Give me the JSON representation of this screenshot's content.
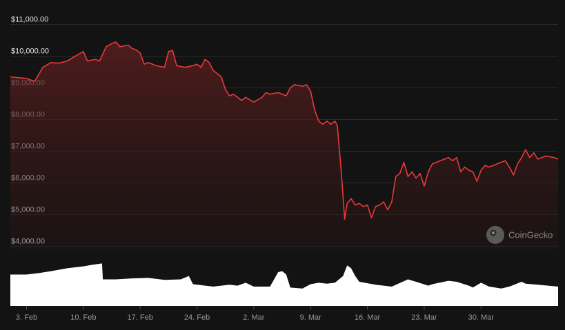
{
  "chart_data": {
    "type": "area",
    "title": "",
    "xlabel": "",
    "ylabel": "",
    "ylim": [
      3900,
      11100
    ],
    "y_ticks": [
      "$11,000.00",
      "$10,000.00",
      "$9,000.00",
      "$8,000.00",
      "$7,000.00",
      "$6,000.00",
      "$5,000.00",
      "$4,000.00"
    ],
    "y_tick_values": [
      11000,
      10000,
      9000,
      8000,
      7000,
      6000,
      5000,
      4000
    ],
    "x_ticks": [
      "3. Feb",
      "10. Feb",
      "17. Feb",
      "24. Feb",
      "2. Mar",
      "9. Mar",
      "16. Mar",
      "23. Mar",
      "30. Mar"
    ],
    "x_tick_days": [
      3,
      10,
      17,
      24,
      31,
      38,
      45,
      52,
      59
    ],
    "x_range_days": [
      1,
      68.5
    ],
    "series": [
      {
        "line_color": "#e83a3a",
        "points": [
          [
            1.0,
            9350
          ],
          [
            2.0,
            9320
          ],
          [
            3.0,
            9300
          ],
          [
            4.0,
            9200
          ],
          [
            5.0,
            9650
          ],
          [
            6.0,
            9800
          ],
          [
            7.0,
            9780
          ],
          [
            8.0,
            9850
          ],
          [
            9.0,
            10000
          ],
          [
            10.0,
            10150
          ],
          [
            10.5,
            9850
          ],
          [
            11.5,
            9900
          ],
          [
            12.0,
            9850
          ],
          [
            12.8,
            10300
          ],
          [
            13.5,
            10400
          ],
          [
            14.0,
            10450
          ],
          [
            14.5,
            10300
          ],
          [
            15.5,
            10350
          ],
          [
            16.0,
            10250
          ],
          [
            16.5,
            10200
          ],
          [
            17.0,
            10100
          ],
          [
            17.5,
            9750
          ],
          [
            18.0,
            9800
          ],
          [
            19.0,
            9700
          ],
          [
            20.0,
            9650
          ],
          [
            20.5,
            10150
          ],
          [
            21.0,
            10180
          ],
          [
            21.5,
            9700
          ],
          [
            22.5,
            9650
          ],
          [
            23.5,
            9700
          ],
          [
            24.0,
            9750
          ],
          [
            24.5,
            9650
          ],
          [
            25.0,
            9900
          ],
          [
            25.5,
            9800
          ],
          [
            26.0,
            9550
          ],
          [
            27.0,
            9350
          ],
          [
            27.5,
            8950
          ],
          [
            28.0,
            8750
          ],
          [
            28.5,
            8800
          ],
          [
            29.0,
            8700
          ],
          [
            29.5,
            8600
          ],
          [
            30.0,
            8700
          ],
          [
            31.0,
            8550
          ],
          [
            32.0,
            8700
          ],
          [
            32.5,
            8850
          ],
          [
            33.0,
            8800
          ],
          [
            34.0,
            8850
          ],
          [
            35.0,
            8750
          ],
          [
            35.5,
            9000
          ],
          [
            36.0,
            9100
          ],
          [
            37.0,
            9050
          ],
          [
            37.5,
            9100
          ],
          [
            38.0,
            8900
          ],
          [
            38.5,
            8300
          ],
          [
            39.0,
            7950
          ],
          [
            39.5,
            7850
          ],
          [
            40.0,
            7950
          ],
          [
            40.5,
            7850
          ],
          [
            41.0,
            7950
          ],
          [
            41.3,
            7800
          ],
          [
            41.8,
            6300
          ],
          [
            42.2,
            4850
          ],
          [
            42.5,
            5350
          ],
          [
            43.0,
            5500
          ],
          [
            43.5,
            5300
          ],
          [
            44.0,
            5350
          ],
          [
            44.5,
            5250
          ],
          [
            45.0,
            5300
          ],
          [
            45.5,
            4900
          ],
          [
            46.0,
            5250
          ],
          [
            46.5,
            5300
          ],
          [
            47.0,
            5400
          ],
          [
            47.5,
            5150
          ],
          [
            48.0,
            5400
          ],
          [
            48.5,
            6200
          ],
          [
            49.0,
            6300
          ],
          [
            49.5,
            6650
          ],
          [
            50.0,
            6200
          ],
          [
            50.5,
            6350
          ],
          [
            51.0,
            6150
          ],
          [
            51.5,
            6300
          ],
          [
            52.0,
            5900
          ],
          [
            52.5,
            6350
          ],
          [
            53.0,
            6600
          ],
          [
            54.0,
            6700
          ],
          [
            55.0,
            6800
          ],
          [
            55.5,
            6700
          ],
          [
            56.0,
            6800
          ],
          [
            56.5,
            6350
          ],
          [
            57.0,
            6500
          ],
          [
            57.5,
            6400
          ],
          [
            58.0,
            6350
          ],
          [
            58.5,
            6050
          ],
          [
            59.0,
            6400
          ],
          [
            59.5,
            6550
          ],
          [
            60.0,
            6500
          ],
          [
            61.0,
            6600
          ],
          [
            62.0,
            6700
          ],
          [
            62.5,
            6500
          ],
          [
            63.0,
            6250
          ],
          [
            63.5,
            6600
          ],
          [
            64.0,
            6800
          ],
          [
            64.5,
            7050
          ],
          [
            65.0,
            6800
          ],
          [
            65.5,
            6950
          ],
          [
            66.0,
            6750
          ],
          [
            66.5,
            6800
          ],
          [
            67.0,
            6850
          ],
          [
            68.0,
            6800
          ],
          [
            68.5,
            6750
          ]
        ]
      }
    ],
    "volume": {
      "color": "#ffffff",
      "ylim": [
        0,
        1
      ],
      "points": [
        [
          1.0,
          0.65
        ],
        [
          3.0,
          0.65
        ],
        [
          4.5,
          0.68
        ],
        [
          6.0,
          0.72
        ],
        [
          8.0,
          0.78
        ],
        [
          10.0,
          0.82
        ],
        [
          11.0,
          0.85
        ],
        [
          12.3,
          0.88
        ],
        [
          12.4,
          0.55
        ],
        [
          14.0,
          0.55
        ],
        [
          16.0,
          0.57
        ],
        [
          18.0,
          0.58
        ],
        [
          20.0,
          0.54
        ],
        [
          22.0,
          0.55
        ],
        [
          23.0,
          0.62
        ],
        [
          23.5,
          0.45
        ],
        [
          26.0,
          0.4
        ],
        [
          28.0,
          0.44
        ],
        [
          29.0,
          0.42
        ],
        [
          30.0,
          0.48
        ],
        [
          31.0,
          0.4
        ],
        [
          33.0,
          0.4
        ],
        [
          34.0,
          0.7
        ],
        [
          34.5,
          0.72
        ],
        [
          35.0,
          0.65
        ],
        [
          35.5,
          0.38
        ],
        [
          37.0,
          0.36
        ],
        [
          38.0,
          0.45
        ],
        [
          39.0,
          0.48
        ],
        [
          40.0,
          0.46
        ],
        [
          41.0,
          0.48
        ],
        [
          42.0,
          0.62
        ],
        [
          42.5,
          0.84
        ],
        [
          43.0,
          0.78
        ],
        [
          43.5,
          0.62
        ],
        [
          44.0,
          0.5
        ],
        [
          46.0,
          0.44
        ],
        [
          48.0,
          0.4
        ],
        [
          50.0,
          0.55
        ],
        [
          51.0,
          0.5
        ],
        [
          52.5,
          0.42
        ],
        [
          53.0,
          0.45
        ],
        [
          55.0,
          0.52
        ],
        [
          56.0,
          0.5
        ],
        [
          57.5,
          0.42
        ],
        [
          58.0,
          0.38
        ],
        [
          59.0,
          0.48
        ],
        [
          60.0,
          0.4
        ],
        [
          61.5,
          0.36
        ],
        [
          62.5,
          0.4
        ],
        [
          64.0,
          0.5
        ],
        [
          64.5,
          0.46
        ],
        [
          66.0,
          0.44
        ],
        [
          68.5,
          0.4
        ]
      ]
    },
    "grid": true,
    "legend": "none"
  },
  "watermark": {
    "text": "CoinGecko",
    "icon": "coingecko-logo-icon"
  }
}
